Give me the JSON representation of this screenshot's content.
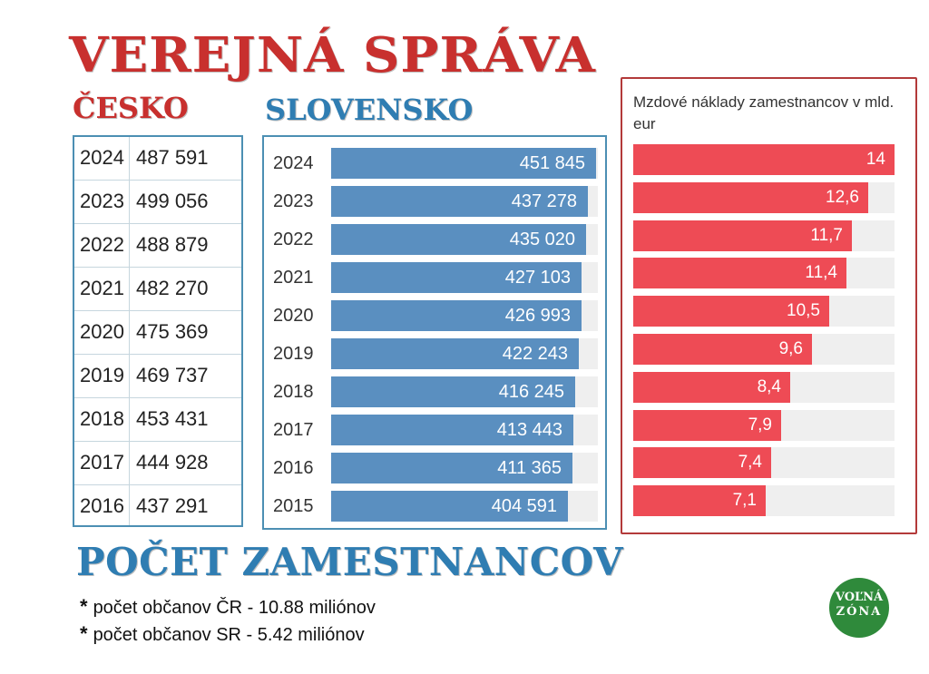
{
  "headline": "VEREJNÁ SPRÁVA",
  "czech_label": "ČESKO",
  "slovak_label": "SLOVENSKO",
  "bottom_title": "POČET ZAMESTNANCOV",
  "notes": [
    "počet občanov ČR - 10.88 miliónov",
    "počet občanov SR - 5.42 miliónov"
  ],
  "note_star": "*",
  "logo": {
    "line1": "VOĽNÁ",
    "line2": "ZÓNA"
  },
  "colors": {
    "title_red": "#c8302e",
    "title_blue": "#2f7db2",
    "slovak_bar": "#5a8fc0",
    "wage_bar": "#ee4b55",
    "track": "#efefef",
    "logo_green": "#2f8a3b"
  },
  "chart_data": [
    {
      "type": "table",
      "title": "ČESKO",
      "rows": [
        {
          "year": "2024",
          "value": "487 591"
        },
        {
          "year": "2023",
          "value": "499 056"
        },
        {
          "year": "2022",
          "value": "488 879"
        },
        {
          "year": "2021",
          "value": "482 270"
        },
        {
          "year": "2020",
          "value": "475 369"
        },
        {
          "year": "2019",
          "value": "469 737"
        },
        {
          "year": "2018",
          "value": "453 431"
        },
        {
          "year": "2017",
          "value": "444 928"
        },
        {
          "year": "2016",
          "value": "437 291"
        }
      ]
    },
    {
      "type": "bar",
      "orientation": "horizontal",
      "title": "SLOVENSKO",
      "categories": [
        "2024",
        "2023",
        "2022",
        "2021",
        "2020",
        "2019",
        "2018",
        "2017",
        "2016",
        "2015"
      ],
      "values": [
        451845,
        437278,
        435020,
        427103,
        426993,
        422243,
        416245,
        413443,
        411365,
        404591
      ],
      "value_labels": [
        "451 845",
        "437 278",
        "435 020",
        "427 103",
        "426 993",
        "422 243",
        "416 245",
        "413 443",
        "411 365",
        "404 591"
      ],
      "grid": false
    },
    {
      "type": "bar",
      "orientation": "horizontal",
      "title": "Mzdové náklady zamestnancov v mld. eur",
      "values": [
        14,
        12.6,
        11.7,
        11.4,
        10.5,
        9.6,
        8.4,
        7.9,
        7.4,
        7.1
      ],
      "value_labels": [
        "14",
        "12,6",
        "11,7",
        "11,4",
        "10,5",
        "9,6",
        "8,4",
        "7,9",
        "7,4",
        "7,1"
      ],
      "grid": false
    }
  ]
}
